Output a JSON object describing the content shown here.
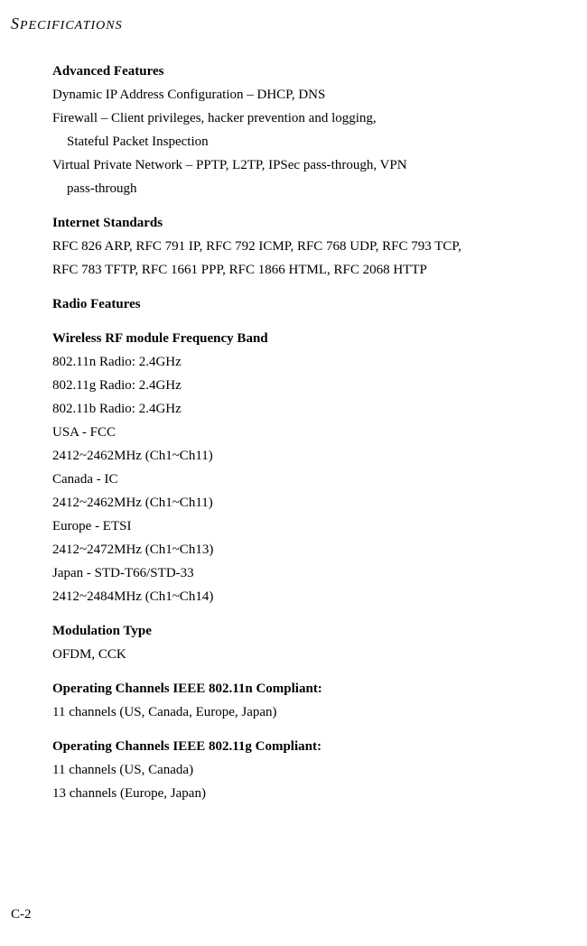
{
  "header": {
    "first_letter": "S",
    "rest": "PECIFICATIONS"
  },
  "sections": {
    "advanced_features": {
      "heading": "Advanced Features",
      "lines": [
        "Dynamic IP Address Configuration – DHCP, DNS",
        "Firewall – Client privileges, hacker prevention and logging,",
        "Stateful Packet Inspection",
        "Virtual Private Network – PPTP, L2TP, IPSec pass-through, VPN",
        "pass-through"
      ]
    },
    "internet_standards": {
      "heading": "Internet Standards",
      "lines": [
        "RFC 826 ARP, RFC 791 IP, RFC 792 ICMP, RFC 768 UDP, RFC 793 TCP,",
        "RFC 783 TFTP, RFC 1661 PPP, RFC 1866 HTML, RFC 2068 HTTP"
      ]
    },
    "radio_features": {
      "heading": "Radio Features"
    },
    "freq_band": {
      "heading": "Wireless RF module Frequency Band",
      "lines": [
        "802.11n Radio: 2.4GHz",
        "802.11g Radio: 2.4GHz",
        "802.11b Radio: 2.4GHz",
        "USA - FCC",
        "2412~2462MHz (Ch1~Ch11)",
        "Canada - IC",
        "2412~2462MHz (Ch1~Ch11)",
        "Europe - ETSI",
        "2412~2472MHz (Ch1~Ch13)",
        "Japan - STD-T66/STD-33",
        "2412~2484MHz (Ch1~Ch14)"
      ]
    },
    "modulation": {
      "heading": "Modulation Type",
      "lines": [
        "OFDM, CCK"
      ]
    },
    "channels_n": {
      "heading": "Operating Channels IEEE 802.11n Compliant:",
      "lines": [
        "11 channels (US, Canada, Europe, Japan)"
      ]
    },
    "channels_g": {
      "heading": "Operating Channels IEEE 802.11g Compliant:",
      "lines": [
        "11 channels (US, Canada)",
        "13 channels (Europe, Japan)"
      ]
    }
  },
  "page_number": "C-2"
}
